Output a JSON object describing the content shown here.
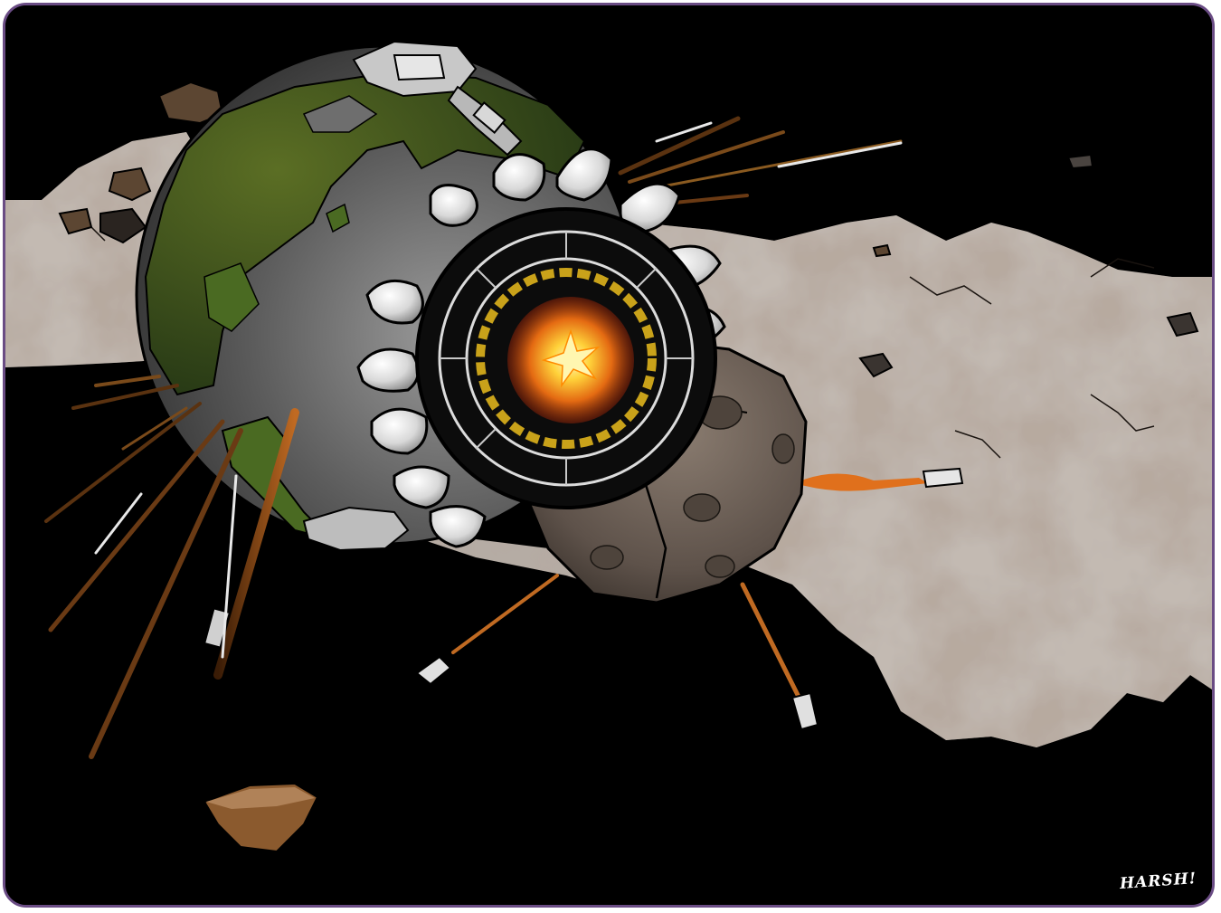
{
  "artwork": {
    "signature": "HARSH!",
    "colors": {
      "frame_border": "#6a4c84",
      "space": "#000000",
      "dust_cloud": "#b8aea4",
      "planet_land": "#3f5a1f",
      "planet_sea": "#6e6e6e",
      "asteroid": "#6b5e55",
      "explosion": "#ffb01f",
      "engine_flame": "#e0701c"
    },
    "icons": [
      "planet-icon",
      "space-station-icon",
      "asteroid-icon",
      "explosion-icon",
      "missile-icon"
    ]
  }
}
